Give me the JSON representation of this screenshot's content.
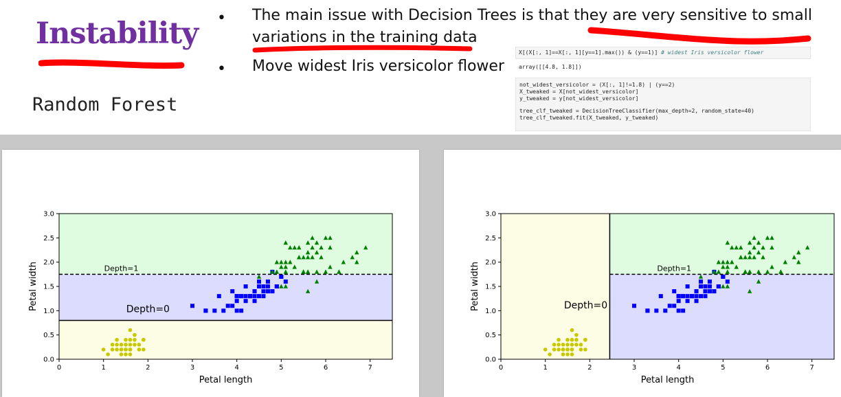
{
  "slide": {
    "title": "Instability",
    "subtitle": "Random Forest",
    "bullets": [
      "The main issue with Decision Trees is that they are very sensitive to small",
      "variations in the training data",
      "Move widest Iris versicolor flower"
    ],
    "code": {
      "cell1_line": "X[(X[:, 1]==X[:, 1][y==1].max()) & (y==1)]",
      "cell1_comment": "# widest Iris versicolor flower",
      "output": "array([[4.8, 1.8]])",
      "cell2": [
        "not_widest_versicolor = (X[:, 1]!=1.8) | (y==2)",
        "X_tweaked = X[not_widest_versicolor]",
        "y_tweaked = y[not_widest_versicolor]",
        "",
        "tree_clf_tweaked = DecisionTreeClassifier(max_depth=2, random_state=40)",
        "tree_clf_tweaked.fit(X_tweaked, y_tweaked)"
      ]
    },
    "colors": {
      "title": "#7030a0",
      "ink": "#ff0000",
      "setosa": "#c8c800",
      "versicolor": "#0000ff",
      "virginica": "#008000"
    }
  },
  "chart_data": [
    {
      "type": "scatter",
      "xlabel": "Petal length",
      "ylabel": "Petal width",
      "xlim": [
        0,
        7.5
      ],
      "ylim": [
        0,
        3.0
      ],
      "xticks": [
        "0",
        "1",
        "2",
        "3",
        "4",
        "5",
        "6",
        "7"
      ],
      "yticks": [
        "0.0",
        "0.5",
        "1.0",
        "1.5",
        "2.0",
        "2.5",
        "3.0"
      ],
      "splits": [
        {
          "orientation": "horizontal",
          "value": 0.8,
          "label": "Depth=0",
          "style": "solid"
        },
        {
          "orientation": "horizontal",
          "value": 1.75,
          "label": "Depth=1",
          "style": "dashed"
        }
      ],
      "regions": [
        {
          "x": [
            0,
            7.5
          ],
          "y": [
            0,
            0.8
          ],
          "color": "#fdfde6"
        },
        {
          "x": [
            0,
            7.5
          ],
          "y": [
            0.8,
            1.75
          ],
          "color": "#dcdcff"
        },
        {
          "x": [
            0,
            7.5
          ],
          "y": [
            1.75,
            3.0
          ],
          "color": "#e0fce0"
        }
      ]
    },
    {
      "type": "scatter",
      "xlabel": "Petal length",
      "ylabel": "Petal width",
      "xlim": [
        0,
        7.5
      ],
      "ylim": [
        0,
        3.0
      ],
      "xticks": [
        "0",
        "1",
        "2",
        "3",
        "4",
        "5",
        "6",
        "7"
      ],
      "yticks": [
        "0.0",
        "0.5",
        "1.0",
        "1.5",
        "2.0",
        "2.5",
        "3.0"
      ],
      "splits": [
        {
          "orientation": "vertical",
          "value": 2.45,
          "label": "Depth=0",
          "style": "solid"
        },
        {
          "orientation": "horizontal",
          "value": 1.75,
          "label": "Depth=1",
          "style": "dashed",
          "from_x": 2.45
        }
      ],
      "regions": [
        {
          "x": [
            0,
            2.45
          ],
          "y": [
            0,
            3.0
          ],
          "color": "#fdfde6"
        },
        {
          "x": [
            2.45,
            7.5
          ],
          "y": [
            0,
            1.75
          ],
          "color": "#dcdcff"
        },
        {
          "x": [
            2.45,
            7.5
          ],
          "y": [
            1.75,
            3.0
          ],
          "color": "#e0fce0"
        }
      ]
    }
  ],
  "points": {
    "setosa": [
      [
        1.4,
        0.2
      ],
      [
        1.3,
        0.2
      ],
      [
        1.5,
        0.2
      ],
      [
        1.4,
        0.2
      ],
      [
        1.7,
        0.4
      ],
      [
        1.4,
        0.3
      ],
      [
        1.5,
        0.2
      ],
      [
        1.5,
        0.1
      ],
      [
        1.1,
        0.1
      ],
      [
        1.2,
        0.2
      ],
      [
        1.3,
        0.4
      ],
      [
        1.0,
        0.2
      ],
      [
        1.7,
        0.5
      ],
      [
        1.9,
        0.2
      ],
      [
        1.6,
        0.2
      ],
      [
        1.6,
        0.4
      ],
      [
        1.5,
        0.4
      ],
      [
        1.4,
        0.1
      ],
      [
        1.9,
        0.4
      ],
      [
        1.6,
        0.6
      ],
      [
        1.6,
        0.3
      ],
      [
        1.7,
        0.3
      ],
      [
        1.2,
        0.3
      ],
      [
        1.8,
        0.3
      ],
      [
        1.6,
        0.1
      ],
      [
        1.3,
        0.3
      ],
      [
        1.9,
        0.4
      ],
      [
        1.5,
        0.3
      ],
      [
        1.6,
        0.2
      ],
      [
        1.8,
        0.2
      ]
    ],
    "versicolor": [
      [
        4.7,
        1.4
      ],
      [
        4.5,
        1.5
      ],
      [
        4.9,
        1.5
      ],
      [
        4.0,
        1.3
      ],
      [
        4.6,
        1.5
      ],
      [
        4.5,
        1.3
      ],
      [
        4.7,
        1.6
      ],
      [
        3.3,
        1.0
      ],
      [
        4.6,
        1.3
      ],
      [
        3.9,
        1.4
      ],
      [
        3.5,
        1.0
      ],
      [
        4.2,
        1.5
      ],
      [
        4.0,
        1.0
      ],
      [
        4.7,
        1.4
      ],
      [
        3.6,
        1.3
      ],
      [
        4.4,
        1.4
      ],
      [
        4.1,
        1.0
      ],
      [
        4.5,
        1.5
      ],
      [
        3.9,
        1.1
      ],
      [
        4.8,
        1.8
      ],
      [
        4.0,
        1.3
      ],
      [
        4.9,
        1.5
      ],
      [
        4.3,
        1.3
      ],
      [
        4.4,
        1.4
      ],
      [
        5.0,
        1.7
      ],
      [
        4.5,
        1.5
      ],
      [
        3.8,
        1.1
      ],
      [
        3.7,
        1.0
      ],
      [
        5.1,
        1.6
      ],
      [
        4.5,
        1.6
      ],
      [
        4.7,
        1.5
      ],
      [
        4.4,
        1.3
      ],
      [
        4.1,
        1.3
      ],
      [
        4.0,
        1.3
      ],
      [
        4.4,
        1.2
      ],
      [
        4.6,
        1.4
      ],
      [
        4.0,
        1.2
      ],
      [
        3.3,
        1.0
      ],
      [
        4.2,
        1.3
      ],
      [
        4.2,
        1.2
      ],
      [
        4.3,
        1.3
      ],
      [
        3.0,
        1.1
      ],
      [
        4.1,
        1.3
      ],
      [
        4.8,
        1.4
      ],
      [
        4.9,
        1.5
      ],
      [
        5.0,
        1.7
      ],
      [
        4.8,
        1.4
      ],
      [
        4.3,
        1.3
      ]
    ],
    "virginica": [
      [
        6.0,
        2.5
      ],
      [
        5.1,
        1.9
      ],
      [
        5.9,
        2.1
      ],
      [
        5.6,
        1.8
      ],
      [
        5.8,
        2.2
      ],
      [
        6.6,
        2.1
      ],
      [
        4.5,
        1.7
      ],
      [
        6.3,
        1.8
      ],
      [
        5.8,
        1.8
      ],
      [
        6.1,
        2.5
      ],
      [
        5.1,
        2.0
      ],
      [
        5.3,
        1.9
      ],
      [
        5.5,
        2.1
      ],
      [
        5.0,
        2.0
      ],
      [
        5.1,
        2.4
      ],
      [
        5.3,
        2.3
      ],
      [
        5.5,
        1.8
      ],
      [
        6.7,
        2.2
      ],
      [
        6.9,
        2.3
      ],
      [
        5.0,
        1.5
      ],
      [
        5.7,
        2.3
      ],
      [
        4.9,
        2.0
      ],
      [
        6.7,
        2.0
      ],
      [
        4.9,
        1.8
      ],
      [
        5.7,
        2.1
      ],
      [
        6.0,
        1.8
      ],
      [
        4.8,
        1.8
      ],
      [
        5.6,
        2.1
      ],
      [
        5.8,
        1.6
      ],
      [
        6.1,
        1.9
      ],
      [
        6.4,
        2.0
      ],
      [
        5.6,
        2.2
      ],
      [
        5.1,
        1.5
      ],
      [
        5.6,
        1.4
      ],
      [
        6.1,
        2.3
      ],
      [
        5.6,
        2.4
      ],
      [
        5.5,
        1.8
      ],
      [
        5.4,
        2.1
      ],
      [
        5.2,
        2.3
      ],
      [
        5.9,
        2.3
      ],
      [
        5.7,
        2.5
      ],
      [
        5.2,
        2.0
      ],
      [
        5.0,
        1.9
      ],
      [
        5.4,
        2.3
      ],
      [
        5.1,
        1.8
      ],
      [
        6.3,
        1.8
      ],
      [
        5.6,
        1.8
      ],
      [
        5.4,
        2.1
      ],
      [
        5.5,
        1.8
      ],
      [
        5.8,
        2.4
      ]
    ]
  }
}
